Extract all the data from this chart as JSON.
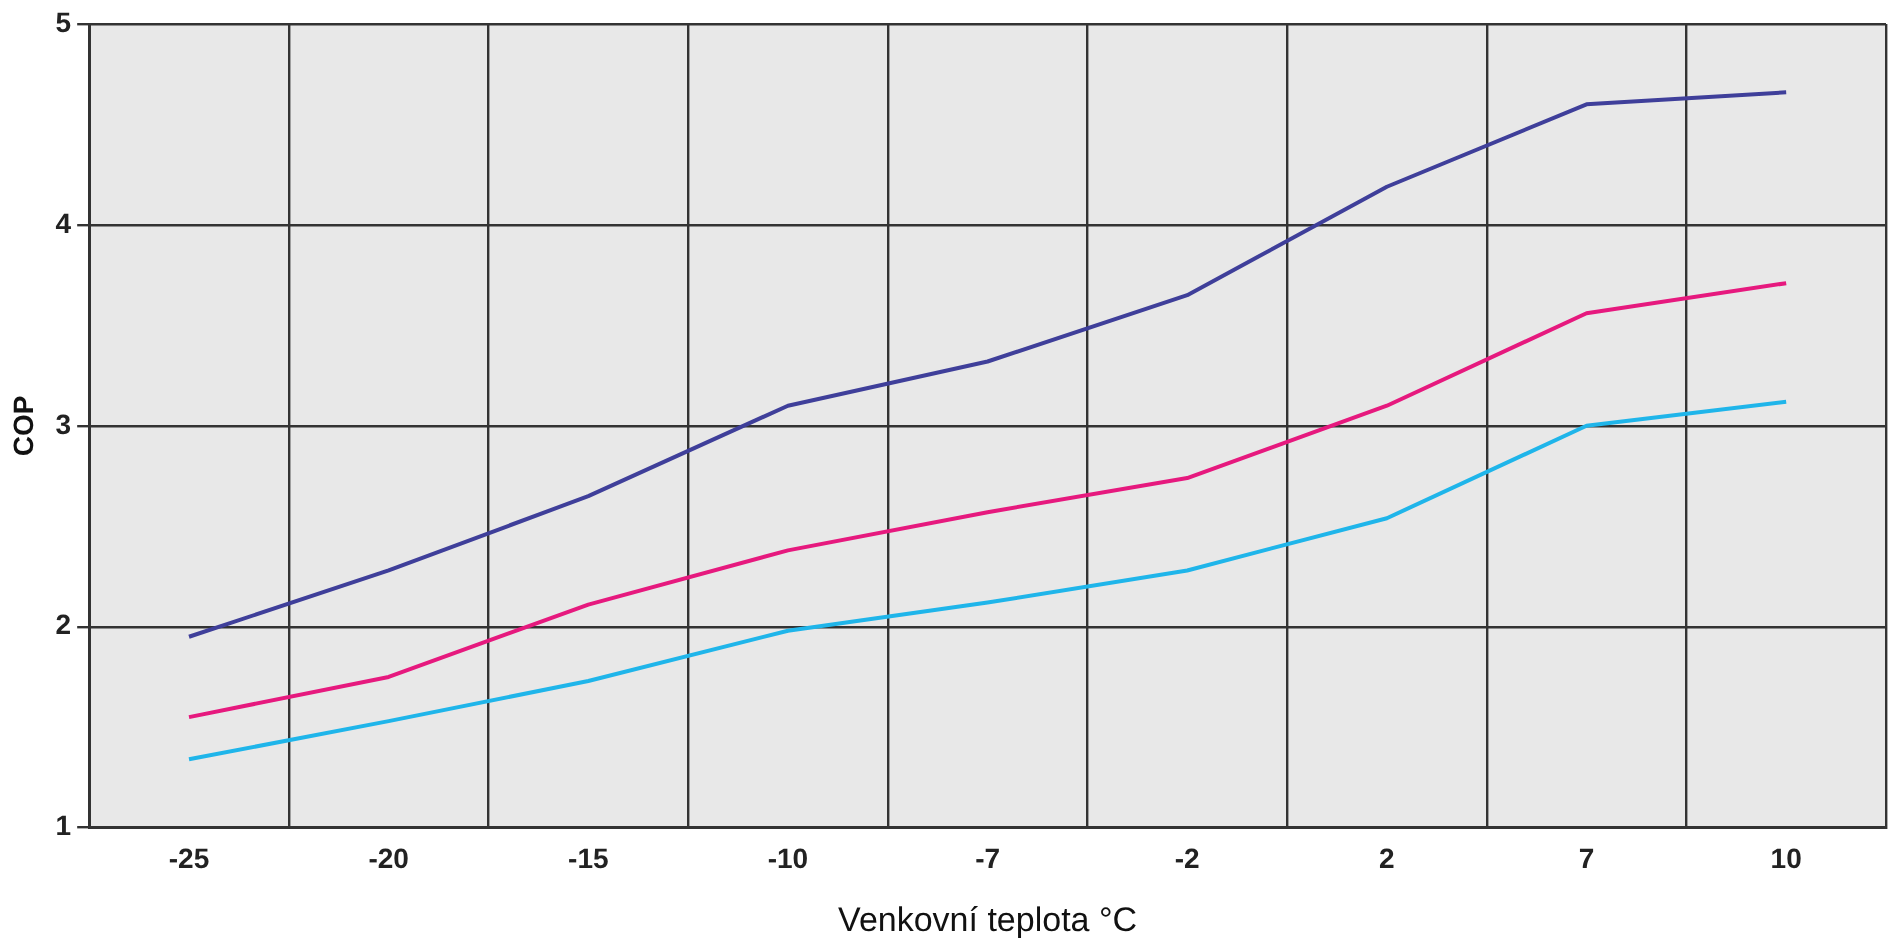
{
  "chart_data": {
    "type": "line",
    "xlabel": "Venkovní teplota °C",
    "ylabel": "COP",
    "categories": [
      "-25",
      "-20",
      "-15",
      "-10",
      "-7",
      "-2",
      "2",
      "7",
      "10"
    ],
    "series": [
      {
        "color": "#3f3f9a",
        "values": [
          1.95,
          2.28,
          2.65,
          3.1,
          3.32,
          3.65,
          4.19,
          4.6,
          4.66
        ]
      },
      {
        "color": "#e6197e",
        "values": [
          1.55,
          1.75,
          2.11,
          2.38,
          2.57,
          2.74,
          3.1,
          3.56,
          3.71
        ]
      },
      {
        "color": "#1fb5ea",
        "values": [
          1.34,
          1.53,
          1.73,
          1.98,
          2.12,
          2.28,
          2.54,
          3.0,
          3.12
        ]
      }
    ],
    "ylim": [
      1,
      5
    ],
    "yticks": [
      1,
      2,
      3,
      4,
      5
    ],
    "grid": true,
    "legend": false,
    "marker": "none",
    "line_style": "solid"
  }
}
